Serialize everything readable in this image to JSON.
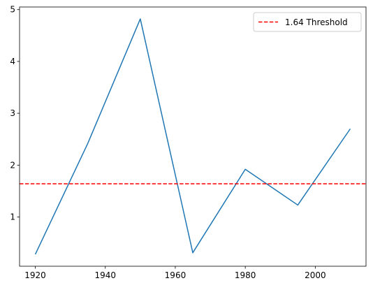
{
  "chart_data": {
    "type": "line",
    "title": "",
    "xlabel": "",
    "ylabel": "",
    "xlim": [
      1915.5,
      2014.5
    ],
    "ylim": [
      0.05,
      5.05
    ],
    "x_ticks": [
      1920,
      1940,
      1960,
      1980,
      2000
    ],
    "y_ticks": [
      1,
      2,
      3,
      4,
      5
    ],
    "grid": false,
    "legend_position": "top-right",
    "series": [
      {
        "color": "#1f77b4",
        "x": [
          1920,
          1935,
          1950,
          1965,
          1980,
          1995,
          2010
        ],
        "y": [
          0.28,
          2.42,
          4.82,
          0.31,
          1.92,
          1.23,
          2.7
        ]
      }
    ],
    "reference_lines": [
      {
        "orientation": "horizontal",
        "y": 1.64,
        "label": "1.64 Threshold",
        "color": "#ff0000",
        "style": "dashed"
      }
    ]
  }
}
